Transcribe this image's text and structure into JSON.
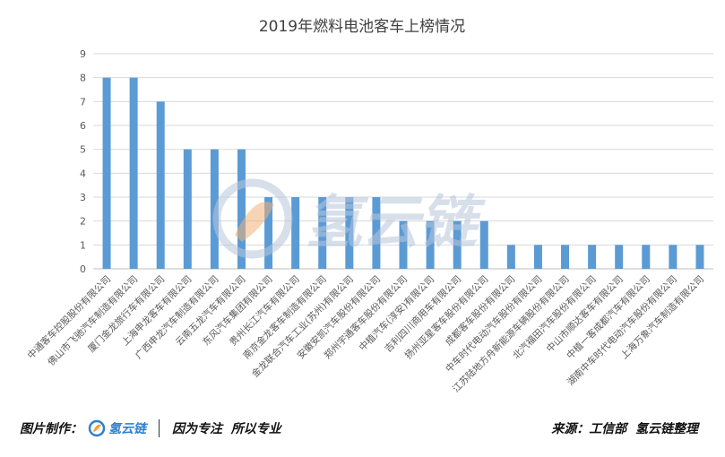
{
  "chart_data": {
    "type": "bar",
    "title": "2019年燃料电池客车上榜情况",
    "xlabel": "",
    "ylabel": "",
    "ylim": [
      0,
      9
    ],
    "yticks": [
      0,
      1,
      2,
      3,
      4,
      5,
      6,
      7,
      8,
      9
    ],
    "grid": true,
    "legend": "none",
    "bar_color": "#5b9bd5",
    "categories": [
      "中通客车控股股份有限公司",
      "佛山市飞驰汽车制造有限公司",
      "厦门金龙旅行车有限公司",
      "上海申龙客车有限公司",
      "广西申龙汽车制造有限公司",
      "云南五龙汽车有限公司",
      "东风汽车集团有限公司",
      "贵州长江汽车有限公司",
      "南京金龙客车制造有限公司",
      "金龙联合汽车工业(苏州)有限公司",
      "安徽安凯汽车股份有限公司",
      "郑州宇通客车股份有限公司",
      "中植汽车(淳安)有限公司",
      "吉利四川商用车有限公司",
      "扬州亚星客车股份有限公司",
      "成都客车股份有限公司",
      "中车时代电动汽车股份有限公司",
      "江苏陆地方舟新能源车辆股份有限公司",
      "北汽福田汽车股份有限公司",
      "中山市顺达客车有限公司",
      "中植一客成都汽车有限公司",
      "湖南中车时代电动汽车股份有限公司",
      "上海万象汽车制造有限公司"
    ],
    "values": [
      8,
      8,
      7,
      5,
      5,
      5,
      3,
      3,
      3,
      3,
      3,
      2,
      2,
      2,
      2,
      1,
      1,
      1,
      1,
      1,
      1,
      1,
      1
    ]
  },
  "watermark": {
    "text": "氢云链",
    "color": "#b8c6dc"
  },
  "footer": {
    "left_label": "图片制作：",
    "brand": "氢云链",
    "slogan": "因为专注  所以专业",
    "source": "来源：工信部  氢云链整理",
    "brand_color": "#2f7fd0"
  }
}
